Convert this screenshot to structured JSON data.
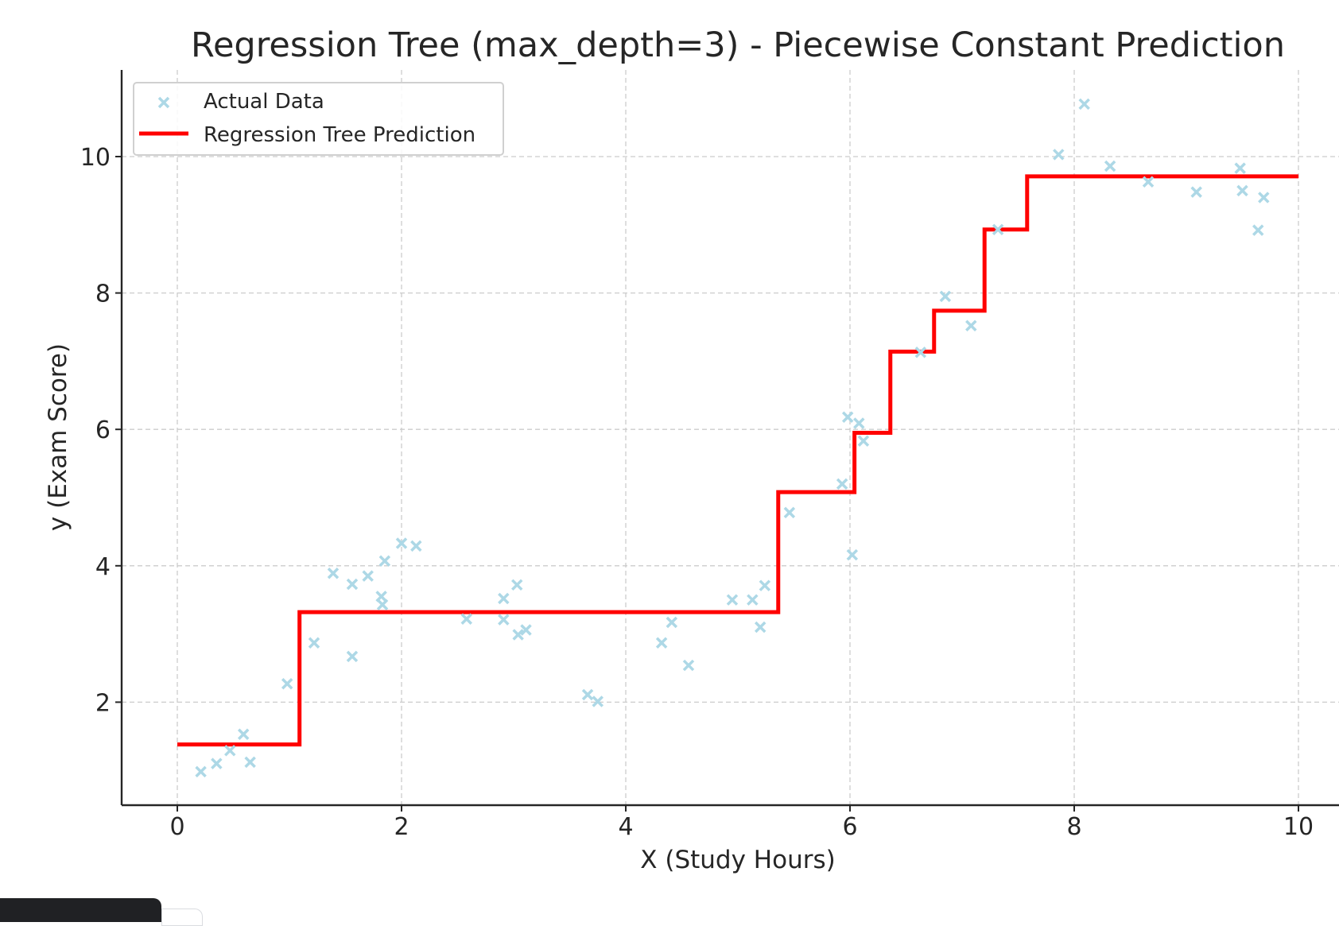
{
  "chart_data": {
    "type": "scatter+step",
    "title": "Regression Tree (max_depth=3) - Piecewise Constant Prediction",
    "xlabel": "X (Study Hours)",
    "ylabel": "y (Exam Score)",
    "xlim": [
      -0.5,
      10.3
    ],
    "ylim": [
      0.5,
      11.2
    ],
    "xticks": [
      0,
      2,
      4,
      6,
      8,
      10
    ],
    "yticks": [
      2,
      4,
      6,
      8,
      10
    ],
    "grid": true,
    "legend": {
      "placement": "top-left",
      "entries": [
        "Actual Data",
        "Regression Tree Prediction"
      ]
    },
    "series": [
      {
        "name": "Actual Data",
        "kind": "scatter",
        "marker": "x",
        "color": "#add8e6",
        "points": [
          [
            0.21,
            0.98
          ],
          [
            0.35,
            1.1
          ],
          [
            0.47,
            1.29
          ],
          [
            0.59,
            1.53
          ],
          [
            0.65,
            1.12
          ],
          [
            0.98,
            2.27
          ],
          [
            1.22,
            2.87
          ],
          [
            1.39,
            3.89
          ],
          [
            1.56,
            3.73
          ],
          [
            1.56,
            2.67
          ],
          [
            1.7,
            3.85
          ],
          [
            1.82,
            3.55
          ],
          [
            1.83,
            3.43
          ],
          [
            1.85,
            4.07
          ],
          [
            2.0,
            4.33
          ],
          [
            2.13,
            4.29
          ],
          [
            2.58,
            3.22
          ],
          [
            2.91,
            3.52
          ],
          [
            2.91,
            3.21
          ],
          [
            3.03,
            3.72
          ],
          [
            3.04,
            2.99
          ],
          [
            3.11,
            3.06
          ],
          [
            3.66,
            2.11
          ],
          [
            3.75,
            2.01
          ],
          [
            4.32,
            2.87
          ],
          [
            4.41,
            3.17
          ],
          [
            4.56,
            2.54
          ],
          [
            4.95,
            3.5
          ],
          [
            5.13,
            3.5
          ],
          [
            5.2,
            3.1
          ],
          [
            5.24,
            3.71
          ],
          [
            5.46,
            4.78
          ],
          [
            5.93,
            5.2
          ],
          [
            5.98,
            6.18
          ],
          [
            6.02,
            4.16
          ],
          [
            6.08,
            6.09
          ],
          [
            6.12,
            5.83
          ],
          [
            6.63,
            7.13
          ],
          [
            6.85,
            7.95
          ],
          [
            7.08,
            7.52
          ],
          [
            7.32,
            8.93
          ],
          [
            7.86,
            10.03
          ],
          [
            8.09,
            10.77
          ],
          [
            8.32,
            9.86
          ],
          [
            8.66,
            9.63
          ],
          [
            9.09,
            9.48
          ],
          [
            9.48,
            9.83
          ],
          [
            9.5,
            9.5
          ],
          [
            9.64,
            8.92
          ],
          [
            9.69,
            9.4
          ]
        ]
      },
      {
        "name": "Regression Tree Prediction",
        "kind": "step",
        "color": "#ff0000",
        "segments": [
          {
            "x0": 0.0,
            "x1": 1.09,
            "y": 1.38
          },
          {
            "x0": 1.09,
            "x1": 5.36,
            "y": 3.32
          },
          {
            "x0": 5.36,
            "x1": 6.04,
            "y": 5.08
          },
          {
            "x0": 6.04,
            "x1": 6.36,
            "y": 5.95
          },
          {
            "x0": 6.36,
            "x1": 6.75,
            "y": 7.14
          },
          {
            "x0": 6.75,
            "x1": 7.2,
            "y": 7.74
          },
          {
            "x0": 7.2,
            "x1": 7.58,
            "y": 8.93
          },
          {
            "x0": 7.58,
            "x1": 10.0,
            "y": 9.71
          }
        ]
      }
    ]
  }
}
